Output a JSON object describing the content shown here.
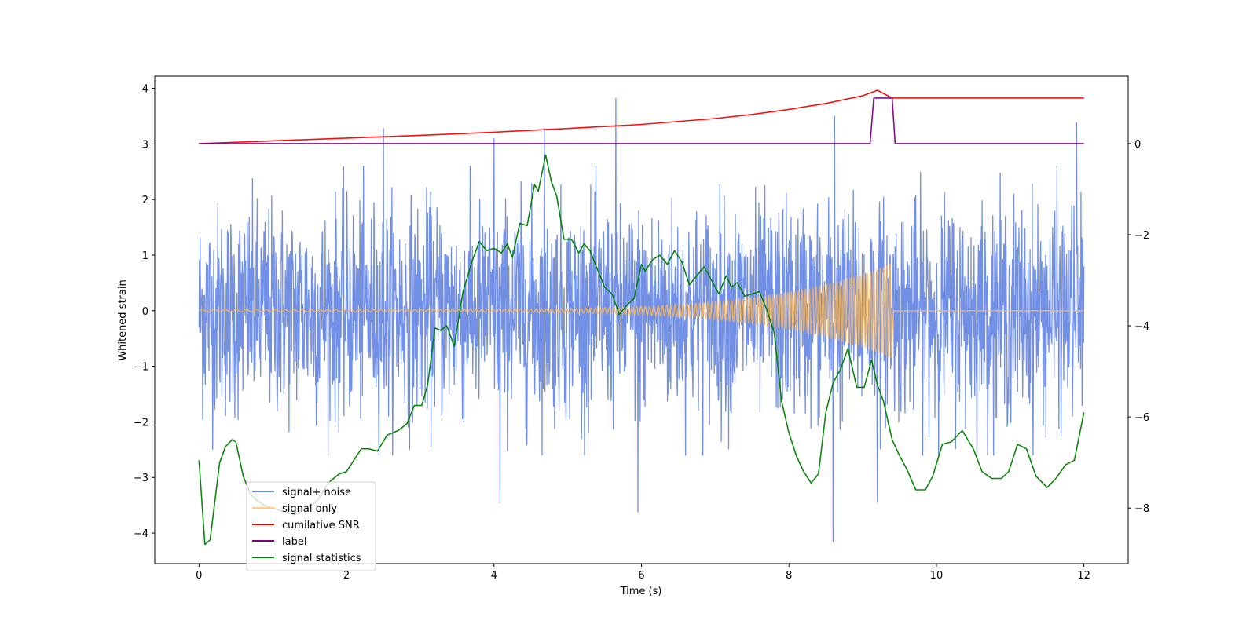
{
  "chart_data": {
    "type": "line",
    "xlabel": "Time (s)",
    "ylabel": "Whitened strain",
    "y2label": "",
    "xlim": [
      -0.6,
      12.6
    ],
    "ylim": [
      -4.55,
      4.22
    ],
    "y2lim": [
      -9.22,
      1.48
    ],
    "xticks": [
      0,
      2,
      4,
      6,
      8,
      10,
      12
    ],
    "yticks": [
      -4,
      -3,
      -2,
      -1,
      0,
      1,
      2,
      3,
      4
    ],
    "y2ticks": [
      -8,
      -6,
      -4,
      -2,
      0
    ],
    "legend_position": "lower-left",
    "series": [
      {
        "name": "signal+ noise",
        "axis": "left",
        "color": "#6b8ae6",
        "kind": "gaussian-noise",
        "x_range": [
          0,
          12
        ],
        "sigma": 0.95,
        "sample_count": 2400,
        "peaks": [
          {
            "x": 5.65,
            "y": 3.82
          },
          {
            "x": 4.0,
            "y": 3.1
          },
          {
            "x": 4.68,
            "y": 3.28
          },
          {
            "x": 2.5,
            "y": 3.28
          },
          {
            "x": 8.62,
            "y": 3.5
          },
          {
            "x": 8.6,
            "y": -4.15
          },
          {
            "x": 5.95,
            "y": -3.62
          },
          {
            "x": 4.08,
            "y": -3.45
          },
          {
            "x": 9.2,
            "y": -3.45
          },
          {
            "x": 11.9,
            "y": 3.38
          }
        ]
      },
      {
        "name": "signal only",
        "axis": "left",
        "color": "#ffb84d",
        "kind": "chirp",
        "x_range": [
          0,
          9.4
        ],
        "amplitude_start": 0.02,
        "amplitude_end": 0.85,
        "after_value": 0
      },
      {
        "name": "cumilative SNR",
        "axis": "right",
        "color": "#ff0000",
        "x": [
          0,
          1,
          2,
          3,
          4,
          5,
          6,
          7,
          7.5,
          8,
          8.5,
          9,
          9.2,
          9.4,
          12
        ],
        "values": [
          0.0,
          0.06,
          0.12,
          0.18,
          0.25,
          0.33,
          0.42,
          0.55,
          0.64,
          0.75,
          0.88,
          1.05,
          1.17,
          1.0,
          1.0
        ]
      },
      {
        "name": "label",
        "axis": "right",
        "color": "#800080",
        "x": [
          0,
          9.1,
          9.15,
          9.4,
          9.44,
          12
        ],
        "values": [
          0,
          0,
          1,
          1,
          0,
          0
        ]
      },
      {
        "name": "signal statistics",
        "axis": "right",
        "color": "#008000",
        "x": [
          0.0,
          0.08,
          0.15,
          0.28,
          0.36,
          0.45,
          0.5,
          0.6,
          0.7,
          0.8,
          0.9,
          1.0,
          1.1,
          1.2,
          1.3,
          1.45,
          1.6,
          1.75,
          1.9,
          2.0,
          2.1,
          2.2,
          2.3,
          2.42,
          2.55,
          2.7,
          2.82,
          2.92,
          3.02,
          3.1,
          3.2,
          3.28,
          3.36,
          3.46,
          3.58,
          3.7,
          3.8,
          3.9,
          4.0,
          4.1,
          4.18,
          4.25,
          4.35,
          4.45,
          4.55,
          4.6,
          4.7,
          4.78,
          4.85,
          4.95,
          5.05,
          5.15,
          5.22,
          5.3,
          5.4,
          5.5,
          5.6,
          5.7,
          5.8,
          5.9,
          6.0,
          6.05,
          6.15,
          6.25,
          6.35,
          6.45,
          6.55,
          6.65,
          6.75,
          6.85,
          6.95,
          7.05,
          7.15,
          7.22,
          7.3,
          7.4,
          7.5,
          7.6,
          7.7,
          7.8,
          7.9,
          8.0,
          8.1,
          8.2,
          8.3,
          8.4,
          8.5,
          8.6,
          8.7,
          8.8,
          8.92,
          9.02,
          9.12,
          9.2,
          9.28,
          9.4,
          9.5,
          9.6,
          9.72,
          9.85,
          9.95,
          10.08,
          10.2,
          10.35,
          10.5,
          10.62,
          10.75,
          10.88,
          10.98,
          11.1,
          11.22,
          11.35,
          11.5,
          11.62,
          11.75,
          11.87,
          12.0
        ],
        "values": [
          -6.95,
          -8.8,
          -8.7,
          -7.0,
          -6.65,
          -6.5,
          -6.55,
          -7.3,
          -7.7,
          -7.85,
          -7.95,
          -8.0,
          -8.05,
          -8.1,
          -8.15,
          -8.0,
          -7.85,
          -7.45,
          -7.25,
          -7.2,
          -6.95,
          -6.7,
          -6.7,
          -6.75,
          -6.4,
          -6.3,
          -6.15,
          -5.75,
          -5.75,
          -5.3,
          -4.05,
          -4.1,
          -4.0,
          -4.45,
          -3.25,
          -2.6,
          -2.15,
          -2.35,
          -2.3,
          -2.4,
          -2.2,
          -2.5,
          -1.75,
          -1.8,
          -0.9,
          -1.05,
          -0.25,
          -0.85,
          -1.15,
          -2.1,
          -2.1,
          -2.4,
          -2.2,
          -2.35,
          -2.75,
          -3.15,
          -3.3,
          -3.75,
          -3.55,
          -3.4,
          -2.65,
          -2.8,
          -2.55,
          -2.45,
          -2.65,
          -2.35,
          -2.6,
          -3.1,
          -2.9,
          -2.7,
          -3.0,
          -3.3,
          -2.9,
          -3.15,
          -3.05,
          -3.35,
          -3.3,
          -3.25,
          -3.65,
          -4.15,
          -5.65,
          -6.35,
          -6.85,
          -7.2,
          -7.45,
          -7.25,
          -5.9,
          -5.25,
          -4.95,
          -4.5,
          -5.35,
          -5.35,
          -4.75,
          -5.3,
          -5.65,
          -6.5,
          -6.85,
          -7.15,
          -7.6,
          -7.6,
          -7.3,
          -6.6,
          -6.55,
          -6.3,
          -6.7,
          -7.2,
          -7.35,
          -7.35,
          -7.2,
          -6.6,
          -6.7,
          -7.3,
          -7.55,
          -7.35,
          -7.05,
          -6.95,
          -5.9
        ]
      }
    ]
  }
}
